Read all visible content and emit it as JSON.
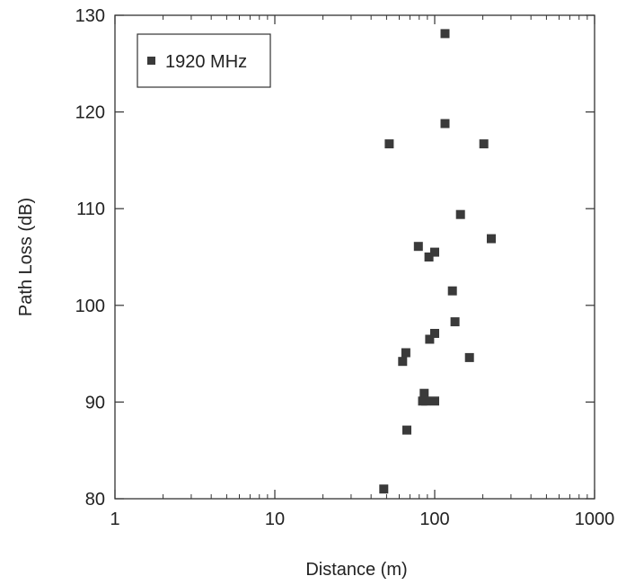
{
  "chart_data": {
    "type": "scatter",
    "xlabel": "Distance (m)",
    "ylabel": "Path Loss (dB)",
    "xscale": "log",
    "xlim": [
      1,
      1000
    ],
    "ylim": [
      80,
      130
    ],
    "x_ticks": [
      1,
      10,
      100,
      1000
    ],
    "x_tick_labels": [
      "1",
      "10",
      "100",
      "1000"
    ],
    "y_ticks": [
      80,
      90,
      100,
      110,
      120,
      130
    ],
    "y_tick_labels": [
      "80",
      "90",
      "100",
      "110",
      "120",
      "130"
    ],
    "grid": false,
    "legend_position": "top-left",
    "marker_color": "#3a3a3a",
    "series": [
      {
        "name": "1920 MHz",
        "marker": "square",
        "points": [
          {
            "x": 48,
            "y": 81
          },
          {
            "x": 52,
            "y": 116.7
          },
          {
            "x": 63,
            "y": 94.2
          },
          {
            "x": 66,
            "y": 95.1
          },
          {
            "x": 67,
            "y": 87.1
          },
          {
            "x": 79,
            "y": 106.1
          },
          {
            "x": 84,
            "y": 90.1
          },
          {
            "x": 86,
            "y": 90.9
          },
          {
            "x": 88,
            "y": 90.1
          },
          {
            "x": 92,
            "y": 105
          },
          {
            "x": 93,
            "y": 96.5
          },
          {
            "x": 100,
            "y": 105.5
          },
          {
            "x": 100,
            "y": 97.1
          },
          {
            "x": 100,
            "y": 90.1
          },
          {
            "x": 116,
            "y": 128.1
          },
          {
            "x": 116,
            "y": 118.8
          },
          {
            "x": 129,
            "y": 101.5
          },
          {
            "x": 134,
            "y": 98.3
          },
          {
            "x": 145,
            "y": 109.4
          },
          {
            "x": 165,
            "y": 94.6
          },
          {
            "x": 203,
            "y": 116.7
          },
          {
            "x": 226,
            "y": 106.9
          }
        ]
      }
    ]
  }
}
